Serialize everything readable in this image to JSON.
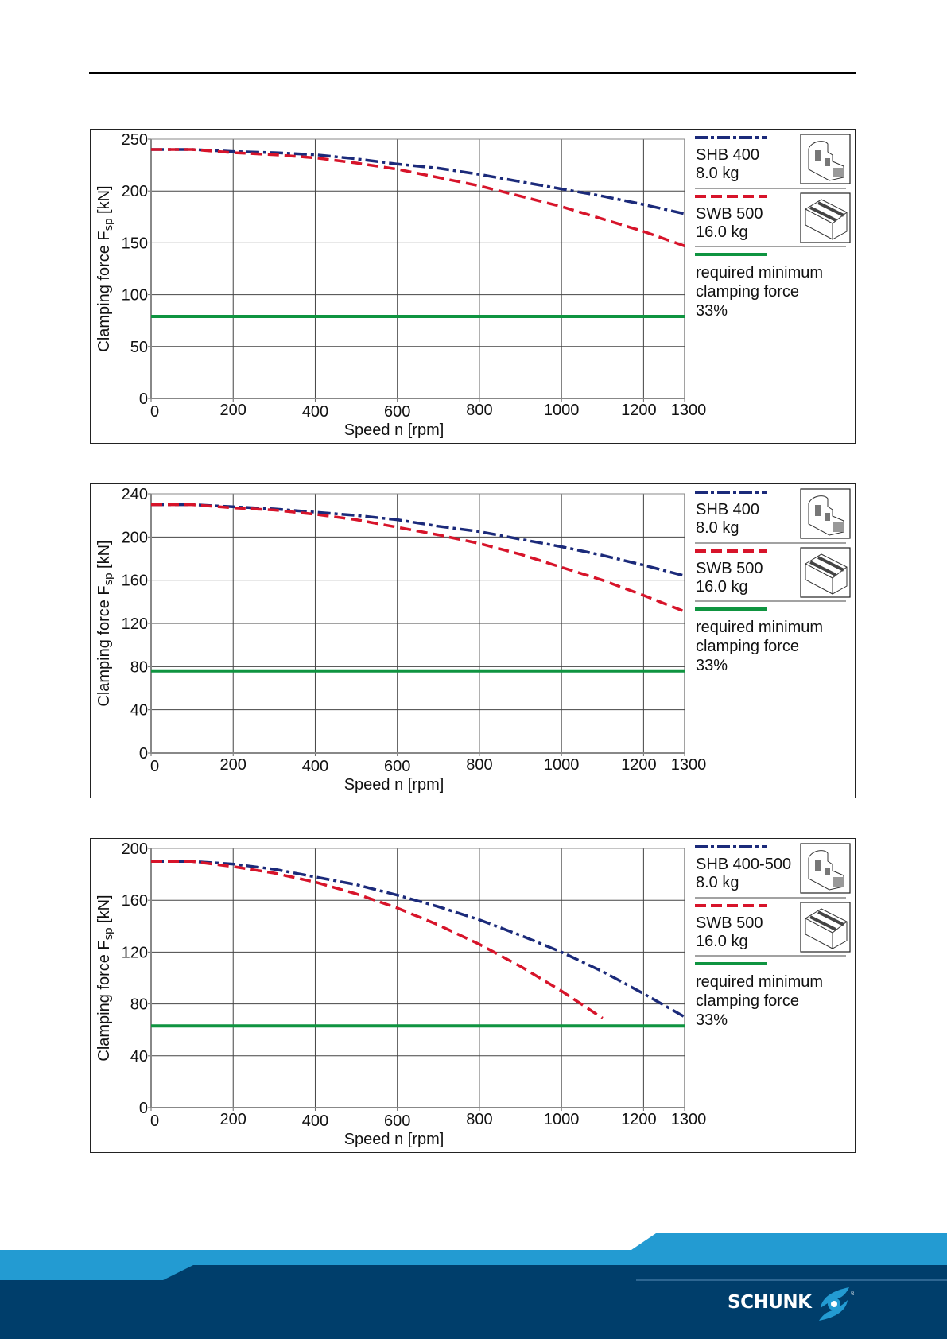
{
  "footer": {
    "brand": "SCHUNK",
    "registered_mark": "®",
    "colors": {
      "light_band": "#239bd2",
      "dark_band": "#003e6b",
      "logo_accent": "#239bd2"
    }
  },
  "colors": {
    "shb": "#1b2a7a",
    "swb": "#d7142a",
    "min_force": "#0f9440",
    "grid": "#333333"
  },
  "chart_data": [
    {
      "type": "line",
      "title": "",
      "xlabel": "Speed n [rpm]",
      "ylabel_main": "Clamping force F",
      "ylabel_sub": "sp",
      "ylabel_unit": " [kN]",
      "xlim": [
        0,
        1300
      ],
      "ylim": [
        0,
        250
      ],
      "xticks": [
        0,
        200,
        400,
        600,
        800,
        1000,
        1200,
        1300
      ],
      "yticks": [
        0,
        50,
        100,
        150,
        200,
        250
      ],
      "grid": true,
      "legend_position": "right",
      "series": [
        {
          "name": "SHB 400",
          "weight": "8.0 kg",
          "style": "dash-dot",
          "color_key": "shb",
          "icon": "hard-jaw-icon",
          "x": [
            0,
            100,
            200,
            300,
            400,
            500,
            600,
            700,
            800,
            900,
            1000,
            1100,
            1200,
            1300
          ],
          "y": [
            240,
            240,
            238,
            237,
            235,
            231,
            226,
            222,
            216,
            209,
            202,
            195,
            187,
            178
          ]
        },
        {
          "name": "SWB 500",
          "weight": "16.0 kg",
          "style": "dashed",
          "color_key": "swb",
          "icon": "soft-jaw-icon",
          "x": [
            0,
            100,
            200,
            300,
            400,
            500,
            600,
            700,
            800,
            900,
            1000,
            1100,
            1200,
            1300
          ],
          "y": [
            240,
            240,
            237,
            235,
            232,
            227,
            221,
            213,
            205,
            195,
            185,
            173,
            161,
            147
          ]
        },
        {
          "name": "required minimum clamping force 33%",
          "label_lines": [
            "required minimum",
            "clamping force",
            "33%"
          ],
          "style": "solid",
          "color_key": "min_force",
          "x": [
            0,
            1300
          ],
          "y": [
            79,
            79
          ]
        }
      ]
    },
    {
      "type": "line",
      "title": "",
      "xlabel": "Speed n [rpm]",
      "ylabel_main": "Clamping force F",
      "ylabel_sub": "sp",
      "ylabel_unit": " [kN]",
      "xlim": [
        0,
        1300
      ],
      "ylim": [
        0,
        240
      ],
      "xticks": [
        0,
        200,
        400,
        600,
        800,
        1000,
        1200,
        1300
      ],
      "yticks": [
        0,
        40,
        80,
        120,
        160,
        200,
        240
      ],
      "grid": true,
      "legend_position": "right",
      "series": [
        {
          "name": "SHB 400",
          "weight": "8.0 kg",
          "style": "dash-dot",
          "color_key": "shb",
          "icon": "hard-jaw-icon",
          "x": [
            0,
            100,
            200,
            300,
            400,
            500,
            600,
            700,
            800,
            900,
            1000,
            1100,
            1200,
            1300
          ],
          "y": [
            230,
            230,
            228,
            226,
            223,
            220,
            216,
            210,
            205,
            198,
            191,
            183,
            174,
            164
          ]
        },
        {
          "name": "SWB 500",
          "weight": "16.0 kg",
          "style": "dashed",
          "color_key": "swb",
          "icon": "soft-jaw-icon",
          "x": [
            0,
            100,
            200,
            300,
            400,
            500,
            600,
            700,
            800,
            900,
            1000,
            1100,
            1200,
            1300
          ],
          "y": [
            230,
            230,
            227,
            225,
            221,
            216,
            209,
            202,
            194,
            184,
            172,
            160,
            146,
            131
          ]
        },
        {
          "name": "required minimum clamping force 33%",
          "label_lines": [
            "required minimum",
            "clamping force",
            "33%"
          ],
          "style": "solid",
          "color_key": "min_force",
          "x": [
            0,
            1300
          ],
          "y": [
            76,
            76
          ]
        }
      ]
    },
    {
      "type": "line",
      "title": "",
      "xlabel": "Speed n [rpm]",
      "ylabel_main": "Clamping force F",
      "ylabel_sub": "sp",
      "ylabel_unit": " [kN]",
      "xlim": [
        0,
        1300
      ],
      "ylim": [
        0,
        200
      ],
      "xticks": [
        0,
        200,
        400,
        600,
        800,
        1000,
        1200,
        1300
      ],
      "yticks": [
        0,
        40,
        80,
        120,
        160,
        200
      ],
      "grid": true,
      "legend_position": "right",
      "series": [
        {
          "name": "SHB 400-500",
          "weight": "8.0 kg",
          "style": "dash-dot",
          "color_key": "shb",
          "icon": "hard-jaw-icon",
          "x": [
            0,
            100,
            200,
            300,
            400,
            500,
            600,
            700,
            800,
            900,
            1000,
            1100,
            1200,
            1300
          ],
          "y": [
            190,
            190,
            188,
            184,
            178,
            172,
            164,
            155,
            145,
            133,
            120,
            105,
            88,
            70
          ]
        },
        {
          "name": "SWB 500",
          "weight": "16.0 kg",
          "style": "dashed",
          "color_key": "swb",
          "icon": "soft-jaw-icon",
          "x": [
            0,
            100,
            200,
            300,
            400,
            500,
            600,
            700,
            800,
            900,
            1000,
            1100
          ],
          "y": [
            190,
            190,
            186,
            181,
            174,
            165,
            154,
            141,
            126,
            109,
            90,
            69
          ]
        },
        {
          "name": "required minimum clamping force 33%",
          "label_lines": [
            "required minimum",
            "clamping force",
            "33%"
          ],
          "style": "solid",
          "color_key": "min_force",
          "x": [
            0,
            1300
          ],
          "y": [
            63,
            63
          ]
        }
      ]
    }
  ]
}
